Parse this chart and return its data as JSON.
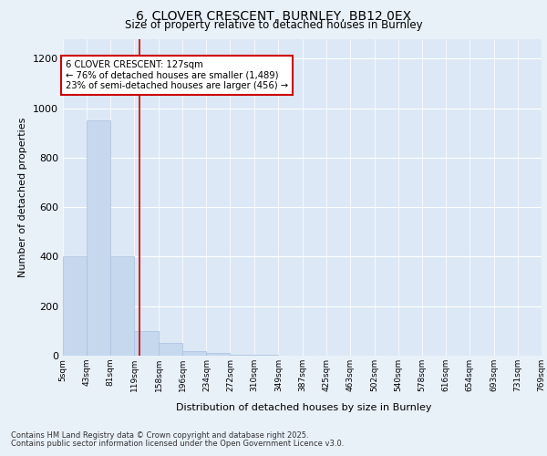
{
  "title_line1": "6, CLOVER CRESCENT, BURNLEY, BB12 0EX",
  "title_line2": "Size of property relative to detached houses in Burnley",
  "xlabel": "Distribution of detached houses by size in Burnley",
  "ylabel": "Number of detached properties",
  "bar_edges": [
    5,
    43,
    81,
    119,
    158,
    196,
    234,
    272,
    310,
    349,
    387,
    425,
    463,
    502,
    540,
    578,
    616,
    654,
    693,
    731,
    769
  ],
  "bar_heights": [
    400,
    950,
    400,
    100,
    50,
    20,
    10,
    3,
    5,
    0,
    0,
    0,
    0,
    0,
    0,
    0,
    0,
    0,
    0,
    0
  ],
  "bar_color": "#c5d8ee",
  "bar_edge_color": "#a8c0de",
  "background_color": "#e8f0f8",
  "plot_bg_color": "#dce8f5",
  "ylim": [
    0,
    1280
  ],
  "yticks": [
    0,
    200,
    400,
    600,
    800,
    1000,
    1200
  ],
  "red_line_x": 127,
  "annotation_text": "6 CLOVER CRESCENT: 127sqm\n← 76% of detached houses are smaller (1,489)\n23% of semi-detached houses are larger (456) →",
  "annotation_box_color": "#ffffff",
  "annotation_box_edge": "#cc0000",
  "red_line_color": "#cc0000",
  "footer_line1": "Contains HM Land Registry data © Crown copyright and database right 2025.",
  "footer_line2": "Contains public sector information licensed under the Open Government Licence v3.0.",
  "tick_labels": [
    "5sqm",
    "43sqm",
    "81sqm",
    "119sqm",
    "158sqm",
    "196sqm",
    "234sqm",
    "272sqm",
    "310sqm",
    "349sqm",
    "387sqm",
    "425sqm",
    "463sqm",
    "502sqm",
    "540sqm",
    "578sqm",
    "616sqm",
    "654sqm",
    "693sqm",
    "731sqm",
    "769sqm"
  ]
}
